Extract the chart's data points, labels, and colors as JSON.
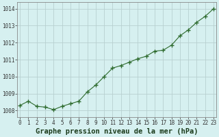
{
  "x": [
    0,
    1,
    2,
    3,
    4,
    5,
    6,
    7,
    8,
    9,
    10,
    11,
    12,
    13,
    14,
    15,
    16,
    17,
    18,
    19,
    20,
    21,
    22,
    23
  ],
  "y": [
    1008.3,
    1008.55,
    1008.25,
    1008.2,
    1008.05,
    1008.25,
    1008.4,
    1008.55,
    1009.1,
    1009.5,
    1010.0,
    1010.5,
    1010.65,
    1010.85,
    1011.05,
    1011.2,
    1011.5,
    1011.55,
    1011.85,
    1012.4,
    1012.75,
    1013.2,
    1013.55,
    1014.0
  ],
  "line_color": "#2d6a2d",
  "marker_color": "#2d6a2d",
  "bg_color": "#d6f0f0",
  "grid_color": "#b8d0d0",
  "xlabel": "Graphe pression niveau de la mer (hPa)",
  "ylim_min": 1007.6,
  "ylim_max": 1014.4,
  "yticks": [
    1008,
    1009,
    1010,
    1011,
    1012,
    1013,
    1014
  ],
  "xlim_min": -0.3,
  "xlim_max": 23.3,
  "tick_fontsize": 5.5,
  "xlabel_fontsize": 7.5,
  "spine_color": "#888888"
}
